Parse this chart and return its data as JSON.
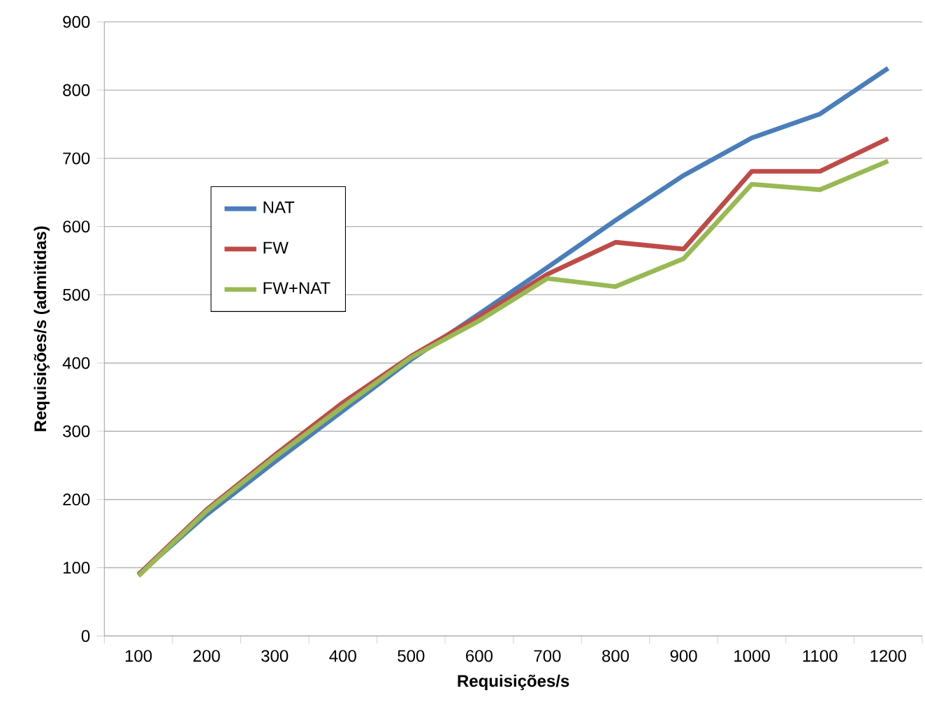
{
  "chart_data": {
    "type": "line",
    "xlabel": "Requisições/s",
    "ylabel": "Requisições/s (admitidas)",
    "categories": [
      "100",
      "200",
      "300",
      "400",
      "500",
      "600",
      "700",
      "800",
      "900",
      "1000",
      "1100",
      "1200"
    ],
    "series": [
      {
        "name": "NAT",
        "color": "#4a7ebb",
        "values": [
          90,
          178,
          255,
          330,
          405,
          472,
          540,
          609,
          675,
          730,
          765,
          832
        ]
      },
      {
        "name": "FW",
        "color": "#be4b48",
        "values": [
          90,
          185,
          265,
          342,
          410,
          468,
          530,
          577,
          567,
          681,
          681,
          729
        ]
      },
      {
        "name": "FW+NAT",
        "color": "#98b954",
        "values": [
          88,
          183,
          262,
          336,
          408,
          462,
          524,
          512,
          553,
          662,
          654,
          696
        ]
      }
    ],
    "ylim": [
      0,
      900
    ],
    "yticks": [
      0,
      100,
      200,
      300,
      400,
      500,
      600,
      700,
      800,
      900
    ],
    "grid": "y",
    "legend": "left",
    "marker": "none",
    "line_style": "solid"
  }
}
